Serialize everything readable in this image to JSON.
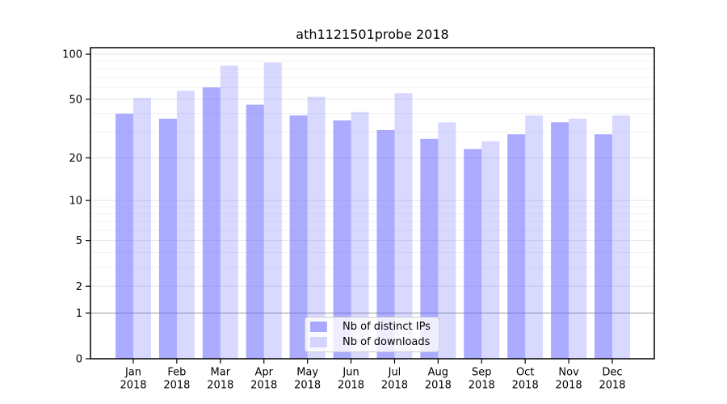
{
  "title": "ath1121501probe 2018",
  "legend": {
    "items": [
      {
        "label": "Nb of distinct IPs",
        "series_key": "distinct_ips"
      },
      {
        "label": "Nb of downloads",
        "series_key": "downloads"
      }
    ]
  },
  "colors": {
    "bar_base": "#6666ff",
    "bar_distinct_ips": "rgba(102,102,255,0.55)",
    "bar_downloads": "rgba(102,102,255,0.25)",
    "grid_major": "#e4e4e4",
    "grid_minor": "#f3f3f3",
    "grid_unit_line": "#999999",
    "axis": "#000000",
    "legend_border": "#cccccc",
    "legend_bg": "rgba(255,255,255,0.8)"
  },
  "chart_data": {
    "type": "bar",
    "title": "ath1121501probe 2018",
    "categories": [
      "Jan",
      "Feb",
      "Mar",
      "Apr",
      "May",
      "Jun",
      "Jul",
      "Aug",
      "Sep",
      "Oct",
      "Nov",
      "Dec"
    ],
    "year": "2018",
    "series": [
      {
        "name": "Nb of distinct IPs",
        "color": "rgba(102,102,255,0.55)",
        "values": [
          40,
          37,
          60,
          46,
          39,
          36,
          31,
          27,
          23,
          29,
          35,
          29
        ]
      },
      {
        "name": "Nb of downloads",
        "color": "rgba(102,102,255,0.25)",
        "values": [
          51,
          57,
          84,
          88,
          52,
          41,
          55,
          35,
          26,
          39,
          37,
          39
        ]
      }
    ],
    "yscale": "log1p",
    "ylim": [
      0,
      110
    ],
    "y_major_ticks": [
      0,
      1,
      2,
      5,
      10,
      20,
      50,
      100
    ],
    "y_minor_ticks": [
      3,
      4,
      6,
      7,
      8,
      9,
      30,
      40,
      60,
      70,
      80,
      90
    ],
    "grid": true,
    "legend_position": "lower center"
  }
}
